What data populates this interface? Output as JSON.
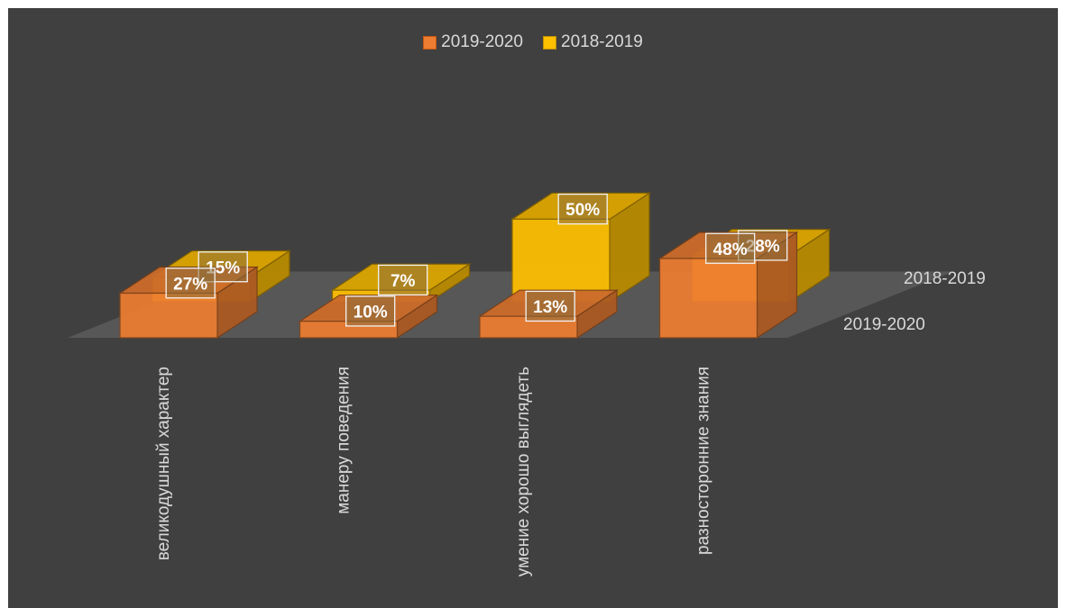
{
  "chart_data": {
    "type": "bar",
    "variant": "3d-bar",
    "title": "",
    "categories": [
      "великодушный характер",
      "манеру поведения",
      "умение хорошо выглядеть",
      "разносторонние знания"
    ],
    "series": [
      {
        "name": "2019-2020",
        "values": [
          27,
          10,
          13,
          48
        ],
        "labels": [
          "27%",
          "10%",
          "13%",
          "48%"
        ],
        "color": "#ED7D31"
      },
      {
        "name": "2018-2019",
        "values": [
          15,
          7,
          50,
          28
        ],
        "labels": [
          "15%",
          "7%",
          "50%",
          "28%"
        ],
        "color": "#FFC000"
      }
    ],
    "depth_labels": [
      "2019-2020",
      "2018-2019"
    ],
    "legend_position": "top",
    "grid": false
  },
  "colors": {
    "background": "#404040",
    "floor": "#595959",
    "text": "#d9d9d9",
    "series_2019_2020": "#ED7D31",
    "series_2018_2019": "#FFC000"
  }
}
